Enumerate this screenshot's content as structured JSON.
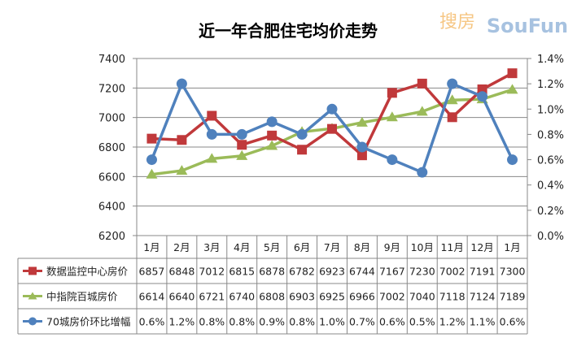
{
  "chart_data": {
    "type": "line",
    "title": "近一年合肥住宅均价走势",
    "categories": [
      "1月",
      "2月",
      "3月",
      "4月",
      "5月",
      "6月",
      "7月",
      "8月",
      "9月",
      "10月",
      "11月",
      "12月",
      "1月"
    ],
    "y_left": {
      "range": [
        6200,
        7400
      ],
      "ticks": [
        "6200",
        "6400",
        "6600",
        "6800",
        "7000",
        "7200",
        "7400"
      ]
    },
    "y_right": {
      "range": [
        0,
        1.4
      ],
      "unit": "%",
      "ticks": [
        "0.0%",
        "0.2%",
        "0.4%",
        "0.6%",
        "0.8%",
        "1.0%",
        "1.2%",
        "1.4%"
      ]
    },
    "grid": true,
    "legend": "data-table-below",
    "series": [
      {
        "name": "数据监控中心房价",
        "axis": "left",
        "color": "#c0393b",
        "marker": "square",
        "values": [
          6857,
          6848,
          7012,
          6815,
          6878,
          6782,
          6923,
          6744,
          7167,
          7230,
          7002,
          7191,
          7300
        ],
        "labels": [
          "6857",
          "6848",
          "7012",
          "6815",
          "6878",
          "6782",
          "6923",
          "6744",
          "7167",
          "7230",
          "7002",
          "7191",
          "7300"
        ]
      },
      {
        "name": "中指院百城房价",
        "axis": "left",
        "color": "#9bbb59",
        "marker": "triangle",
        "values": [
          6614,
          6640,
          6721,
          6740,
          6808,
          6903,
          6925,
          6966,
          7002,
          7040,
          7118,
          7124,
          7189
        ],
        "labels": [
          "6614",
          "6640",
          "6721",
          "6740",
          "6808",
          "6903",
          "6925",
          "6966",
          "7002",
          "7040",
          "7118",
          "7124",
          "7189"
        ]
      },
      {
        "name": "70城房价环比增幅",
        "axis": "right",
        "color": "#4f81bd",
        "marker": "circle",
        "values": [
          0.6,
          1.2,
          0.8,
          0.8,
          0.9,
          0.8,
          1.0,
          0.7,
          0.6,
          0.5,
          1.2,
          1.1,
          0.6
        ],
        "labels": [
          "0.6%",
          "1.2%",
          "0.8%",
          "0.8%",
          "0.9%",
          "0.8%",
          "1.0%",
          "0.7%",
          "0.6%",
          "0.5%",
          "1.2%",
          "1.1%",
          "0.6%"
        ]
      }
    ],
    "watermark": "搜房 SouFun www.SouFun.com"
  }
}
